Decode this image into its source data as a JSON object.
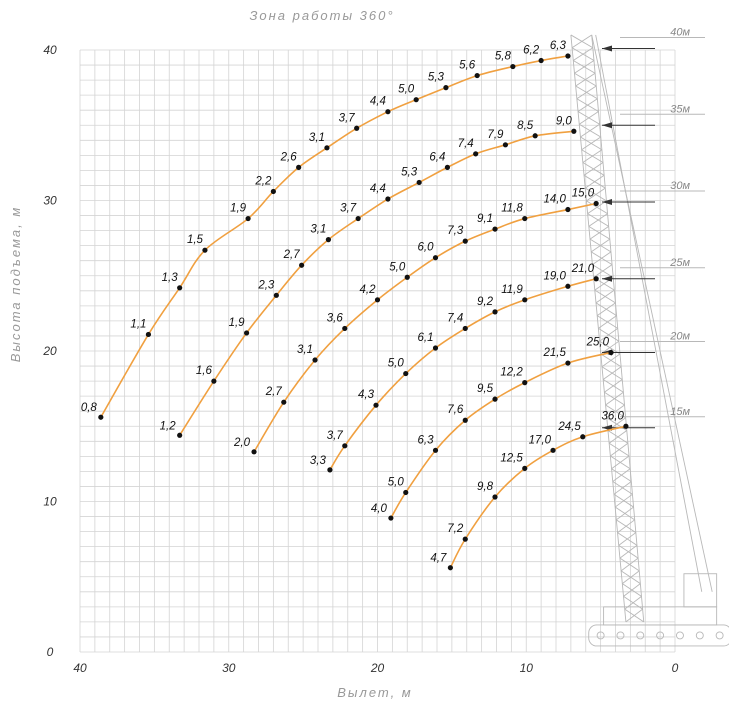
{
  "chart_data": {
    "type": "line",
    "title": "Зона работы 360°",
    "xlabel": "Вылет, м",
    "ylabel": "Высота подъема, м",
    "xlim": [
      40,
      0
    ],
    "ylim": [
      0,
      40
    ],
    "x_ticks": [
      "40",
      "30",
      "20",
      "10",
      "0"
    ],
    "y_ticks": [
      "0",
      "10",
      "20",
      "30",
      "40"
    ],
    "grid": true,
    "series": [
      {
        "name": "40м",
        "points": [
          {
            "x": 38.6,
            "y": 15.6,
            "label": "0,8"
          },
          {
            "x": 35.4,
            "y": 21.1,
            "label": "1,1"
          },
          {
            "x": 33.3,
            "y": 24.2,
            "label": "1,3"
          },
          {
            "x": 31.6,
            "y": 26.7,
            "label": "1,5"
          },
          {
            "x": 28.7,
            "y": 28.8,
            "label": "1,9"
          },
          {
            "x": 27.0,
            "y": 30.6,
            "label": "2,2"
          },
          {
            "x": 25.3,
            "y": 32.2,
            "label": "2,6"
          },
          {
            "x": 23.4,
            "y": 33.5,
            "label": "3,1"
          },
          {
            "x": 21.4,
            "y": 34.8,
            "label": "3,7"
          },
          {
            "x": 19.3,
            "y": 35.9,
            "label": "4,4"
          },
          {
            "x": 17.4,
            "y": 36.7,
            "label": "5,0"
          },
          {
            "x": 15.4,
            "y": 37.5,
            "label": "5,3"
          },
          {
            "x": 13.3,
            "y": 38.3,
            "label": "5,6"
          },
          {
            "x": 10.9,
            "y": 38.9,
            "label": "5,8"
          },
          {
            "x": 9.0,
            "y": 39.3,
            "label": "6,2"
          },
          {
            "x": 7.2,
            "y": 39.6,
            "label": "6,3"
          }
        ]
      },
      {
        "name": "35м",
        "points": [
          {
            "x": 33.3,
            "y": 14.4,
            "label": "1,2"
          },
          {
            "x": 31.0,
            "y": 18.0,
            "label": "1,6"
          },
          {
            "x": 28.8,
            "y": 21.2,
            "label": "1,9"
          },
          {
            "x": 26.8,
            "y": 23.7,
            "label": "2,3"
          },
          {
            "x": 25.1,
            "y": 25.7,
            "label": "2,7"
          },
          {
            "x": 23.3,
            "y": 27.4,
            "label": "3,1"
          },
          {
            "x": 21.3,
            "y": 28.8,
            "label": "3,7"
          },
          {
            "x": 19.3,
            "y": 30.1,
            "label": "4,4"
          },
          {
            "x": 17.2,
            "y": 31.2,
            "label": "5,3"
          },
          {
            "x": 15.3,
            "y": 32.2,
            "label": "6,4"
          },
          {
            "x": 13.4,
            "y": 33.1,
            "label": "7,4"
          },
          {
            "x": 11.4,
            "y": 33.7,
            "label": "7,9"
          },
          {
            "x": 9.4,
            "y": 34.3,
            "label": "8,5"
          },
          {
            "x": 6.8,
            "y": 34.6,
            "label": "9,0"
          }
        ]
      },
      {
        "name": "30м",
        "points": [
          {
            "x": 28.3,
            "y": 13.3,
            "label": "2,0"
          },
          {
            "x": 26.3,
            "y": 16.6,
            "label": "2,7"
          },
          {
            "x": 24.2,
            "y": 19.4,
            "label": "3,1"
          },
          {
            "x": 22.2,
            "y": 21.5,
            "label": "3,6"
          },
          {
            "x": 20.0,
            "y": 23.4,
            "label": "4,2"
          },
          {
            "x": 18.0,
            "y": 24.9,
            "label": "5,0"
          },
          {
            "x": 16.1,
            "y": 26.2,
            "label": "6,0"
          },
          {
            "x": 14.1,
            "y": 27.3,
            "label": "7,3"
          },
          {
            "x": 12.1,
            "y": 28.1,
            "label": "9,1"
          },
          {
            "x": 10.1,
            "y": 28.8,
            "label": "11,8"
          },
          {
            "x": 7.2,
            "y": 29.4,
            "label": "14,0"
          },
          {
            "x": 5.3,
            "y": 29.8,
            "label": "15,0"
          }
        ]
      },
      {
        "name": "25м",
        "points": [
          {
            "x": 23.2,
            "y": 12.1,
            "label": "3,3"
          },
          {
            "x": 22.2,
            "y": 13.7,
            "label": "3,7"
          },
          {
            "x": 20.1,
            "y": 16.4,
            "label": "4,3"
          },
          {
            "x": 18.1,
            "y": 18.5,
            "label": "5,0"
          },
          {
            "x": 16.1,
            "y": 20.2,
            "label": "6,1"
          },
          {
            "x": 14.1,
            "y": 21.5,
            "label": "7,4"
          },
          {
            "x": 12.1,
            "y": 22.6,
            "label": "9,2"
          },
          {
            "x": 10.1,
            "y": 23.4,
            "label": "11,9"
          },
          {
            "x": 7.2,
            "y": 24.3,
            "label": "19,0"
          },
          {
            "x": 5.3,
            "y": 24.8,
            "label": "21,0"
          }
        ]
      },
      {
        "name": "20м",
        "points": [
          {
            "x": 19.1,
            "y": 8.9,
            "label": "4,0"
          },
          {
            "x": 18.1,
            "y": 10.6,
            "label": "5,0"
          },
          {
            "x": 16.1,
            "y": 13.4,
            "label": "6,3"
          },
          {
            "x": 14.1,
            "y": 15.4,
            "label": "7,6"
          },
          {
            "x": 12.1,
            "y": 16.8,
            "label": "9,5"
          },
          {
            "x": 10.1,
            "y": 17.9,
            "label": "12,2"
          },
          {
            "x": 7.2,
            "y": 19.2,
            "label": "21,5"
          },
          {
            "x": 4.3,
            "y": 19.9,
            "label": "25,0"
          }
        ]
      },
      {
        "name": "15м",
        "points": [
          {
            "x": 15.1,
            "y": 5.6,
            "label": "4,7"
          },
          {
            "x": 14.1,
            "y": 7.5,
            "label": "7,2"
          },
          {
            "x": 12.1,
            "y": 10.3,
            "label": "9,8"
          },
          {
            "x": 10.1,
            "y": 12.2,
            "label": "12,5"
          },
          {
            "x": 8.2,
            "y": 13.4,
            "label": "17,0"
          },
          {
            "x": 6.2,
            "y": 14.3,
            "label": "24,5"
          },
          {
            "x": 3.3,
            "y": 15.0,
            "label": "36,0"
          }
        ]
      }
    ],
    "boom_labels": [
      {
        "text": "40м",
        "y": 40.1
      },
      {
        "text": "35м",
        "y": 35.0
      },
      {
        "text": "30м",
        "y": 29.9
      },
      {
        "text": "25м",
        "y": 24.8
      },
      {
        "text": "20м",
        "y": 19.9
      },
      {
        "text": "15м",
        "y": 14.9
      }
    ]
  }
}
